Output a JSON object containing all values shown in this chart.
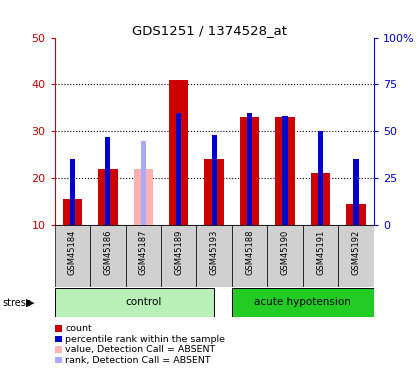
{
  "title": "GDS1251 / 1374528_at",
  "samples": [
    "GSM45184",
    "GSM45186",
    "GSM45187",
    "GSM45189",
    "GSM45193",
    "GSM45188",
    "GSM45190",
    "GSM45191",
    "GSM45192"
  ],
  "red_values": [
    15.5,
    22.0,
    0,
    41.0,
    24.0,
    33.0,
    33.0,
    21.0,
    14.5
  ],
  "pink_values": [
    0,
    0,
    22.0,
    0,
    0,
    0,
    0,
    0,
    0
  ],
  "blue_pct": [
    35.0,
    47.0,
    0,
    60.0,
    48.0,
    60.0,
    58.0,
    50.0,
    35.0
  ],
  "lblue_pct": [
    0,
    0,
    45.0,
    0,
    0,
    0,
    0,
    0,
    0
  ],
  "absent": [
    false,
    false,
    true,
    false,
    false,
    false,
    false,
    false,
    false
  ],
  "ylim_left": [
    10,
    50
  ],
  "ylim_right": [
    0,
    100
  ],
  "yticks_left": [
    10,
    20,
    30,
    40,
    50
  ],
  "ytick_labels_left": [
    "10",
    "20",
    "30",
    "40",
    "50"
  ],
  "yticks_right_vals": [
    0,
    25,
    50,
    75,
    100
  ],
  "ytick_labels_right": [
    "0",
    "25",
    "50",
    "75",
    "100%"
  ],
  "red_color": "#cc0000",
  "pink_color": "#ffb0b0",
  "blue_color": "#0000cc",
  "lblue_color": "#aaaaff",
  "control_color_light": "#b8f0b8",
  "control_color_dark": "#44cc44",
  "acute_color_dark": "#22cc22",
  "group_bg": "#d0d0d0",
  "bar_width": 0.55,
  "blue_bar_width": 0.15,
  "legend_items": [
    "count",
    "percentile rank within the sample",
    "value, Detection Call = ABSENT",
    "rank, Detection Call = ABSENT"
  ],
  "legend_colors": [
    "#cc0000",
    "#0000cc",
    "#ffb0b0",
    "#aaaaff"
  ]
}
